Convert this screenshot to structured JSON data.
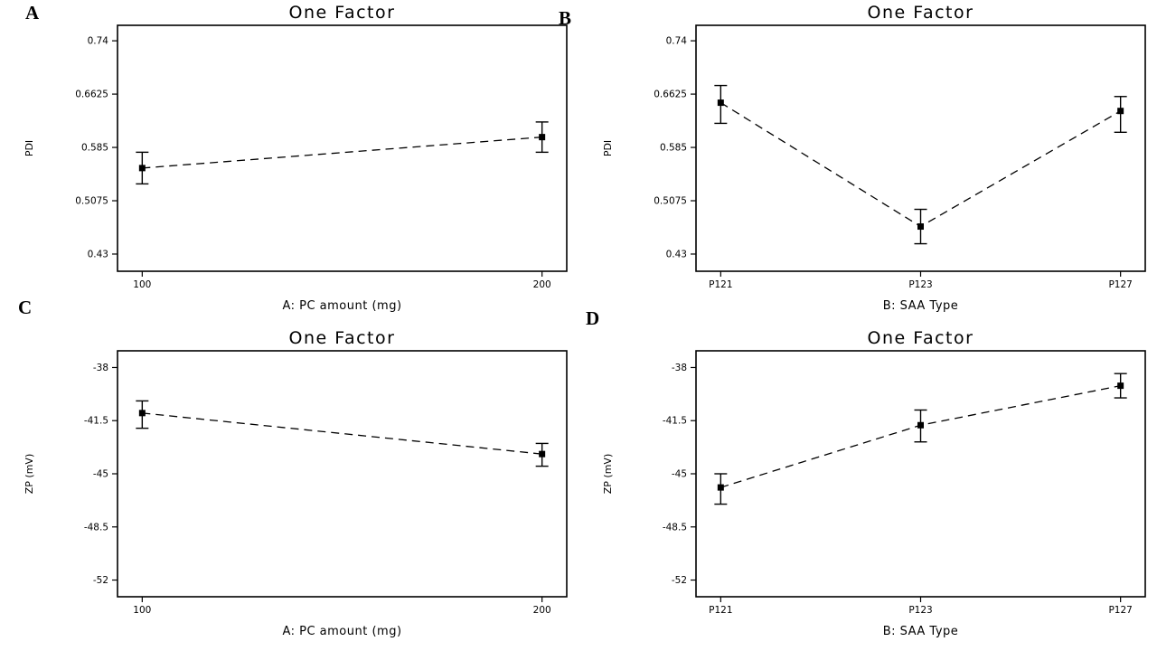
{
  "figure": {
    "background": "#ffffff",
    "ink_color": "#000000",
    "panel_letters": [
      "A",
      "B",
      "C",
      "D"
    ]
  },
  "chart_data": [
    {
      "type": "line",
      "panel": "A",
      "title": "One Factor",
      "xlabel": "A: PC amount (mg)",
      "ylabel": "PDI",
      "x_kind": "numeric",
      "categories": [
        "100",
        "200"
      ],
      "yticks": [
        0.74,
        0.6625,
        0.585,
        0.5075,
        0.43
      ],
      "ytick_labels": [
        "0.74",
        "0.6625",
        "0.585",
        "0.5075",
        "0.43"
      ],
      "ylim": [
        0.405,
        0.7625
      ],
      "series": [
        {
          "name": "PDI",
          "values": [
            0.555,
            0.6
          ],
          "err_low": [
            0.532,
            0.578
          ],
          "err_high": [
            0.578,
            0.622
          ]
        }
      ],
      "line_style": "dashed",
      "marker": "square",
      "grid": false,
      "legend": "none"
    },
    {
      "type": "line",
      "panel": "B",
      "title": "One Factor",
      "xlabel": "B: SAA Type",
      "ylabel": "PDI",
      "x_kind": "categorical",
      "categories": [
        "P121",
        "P123",
        "P127"
      ],
      "yticks": [
        0.74,
        0.6625,
        0.585,
        0.5075,
        0.43
      ],
      "ytick_labels": [
        "0.74",
        "0.6625",
        "0.585",
        "0.5075",
        "0.43"
      ],
      "ylim": [
        0.405,
        0.7625
      ],
      "series": [
        {
          "name": "PDI",
          "values": [
            0.65,
            0.47,
            0.638
          ],
          "err_low": [
            0.62,
            0.445,
            0.607
          ],
          "err_high": [
            0.675,
            0.495,
            0.659
          ]
        }
      ],
      "line_style": "dashed",
      "marker": "square",
      "grid": false,
      "legend": "none"
    },
    {
      "type": "line",
      "panel": "C",
      "title": "One Factor",
      "xlabel": "A: PC amount (mg)",
      "ylabel": "ZP (mV)",
      "x_kind": "numeric",
      "categories": [
        "100",
        "200"
      ],
      "yticks": [
        -38,
        -41.5,
        -45,
        -48.5,
        -52
      ],
      "ytick_labels": [
        "-38",
        "-41.5",
        "-45",
        "-48.5",
        "-52"
      ],
      "ylim": [
        -53.1,
        -36.9
      ],
      "series": [
        {
          "name": "ZP",
          "values": [
            -41.0,
            -43.7
          ],
          "err_low": [
            -42.0,
            -44.5
          ],
          "err_high": [
            -40.2,
            -43.0
          ]
        }
      ],
      "line_style": "dashed",
      "marker": "square",
      "grid": false,
      "legend": "none"
    },
    {
      "type": "line",
      "panel": "D",
      "title": "One Factor",
      "xlabel": "B: SAA Type",
      "ylabel": "ZP (mV)",
      "x_kind": "categorical",
      "categories": [
        "P121",
        "P123",
        "P127"
      ],
      "yticks": [
        -38,
        -41.5,
        -45,
        -48.5,
        -52
      ],
      "ytick_labels": [
        "-38",
        "-41.5",
        "-45",
        "-48.5",
        "-52"
      ],
      "ylim": [
        -53.1,
        -36.9
      ],
      "series": [
        {
          "name": "ZP",
          "values": [
            -45.9,
            -41.8,
            -39.2
          ],
          "err_low": [
            -47.0,
            -42.9,
            -40.0
          ],
          "err_high": [
            -45.0,
            -40.8,
            -38.4
          ]
        }
      ],
      "line_style": "dashed",
      "marker": "square",
      "grid": false,
      "legend": "none"
    }
  ]
}
